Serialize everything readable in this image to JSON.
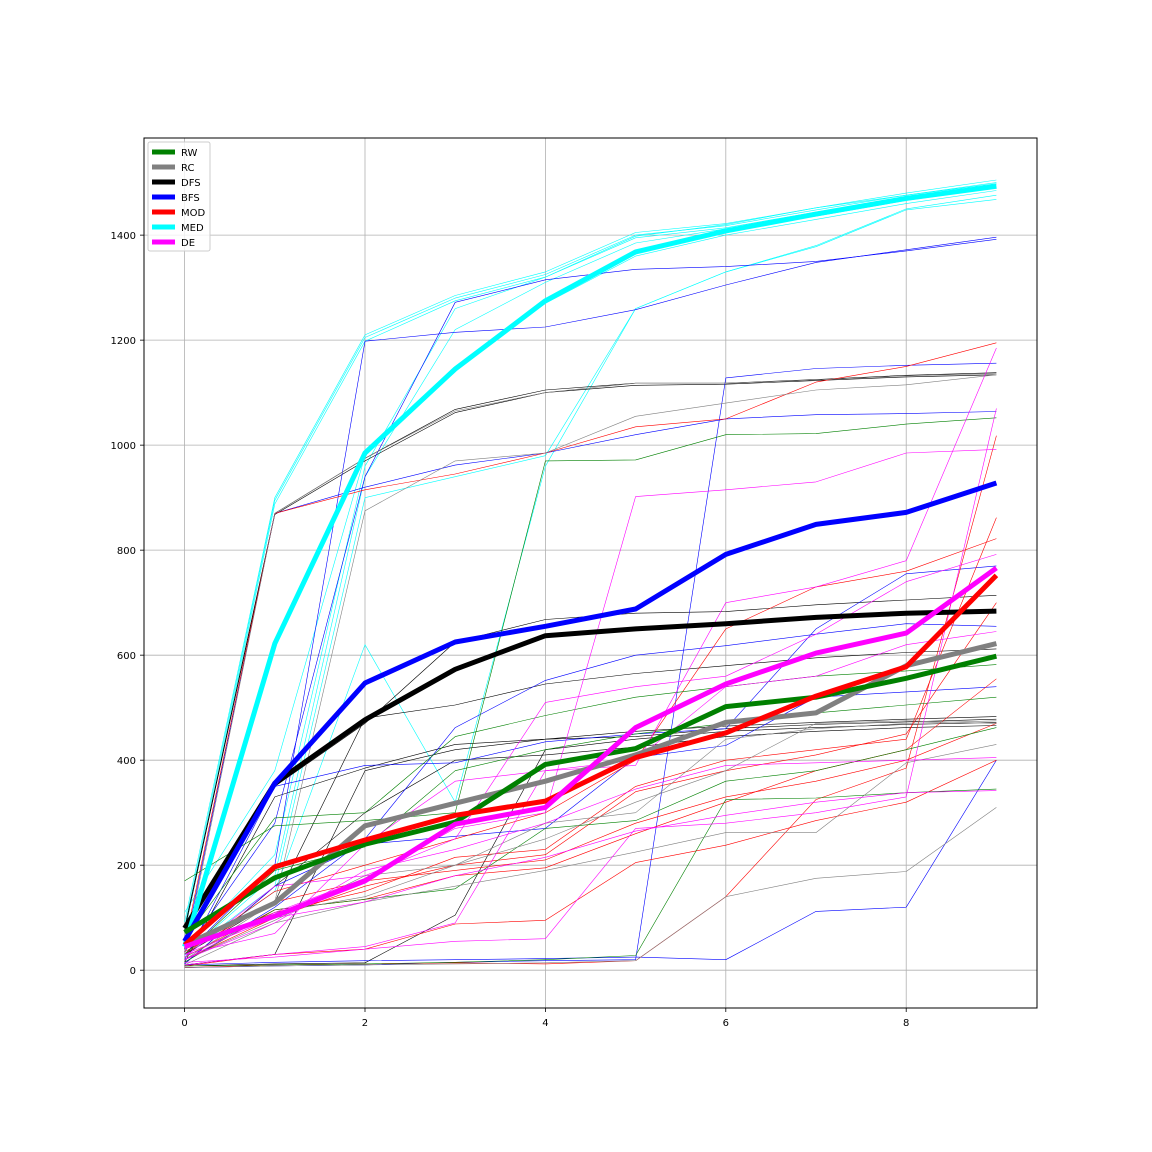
{
  "chart_data": {
    "type": "line",
    "title": "",
    "xlabel": "",
    "ylabel": "",
    "xlim": [
      -0.45,
      9.45
    ],
    "ylim": [
      -72,
      1585
    ],
    "grid": true,
    "legend_position": "top-left",
    "x": [
      0,
      1,
      2,
      3,
      4,
      5,
      6,
      7,
      8,
      9
    ],
    "xticks": [
      0,
      2,
      4,
      6,
      8
    ],
    "yticks": [
      0,
      200,
      400,
      600,
      800,
      1000,
      1200,
      1400
    ],
    "series": [
      {
        "name": "RW",
        "color": "#008000",
        "values": [
          72,
          176,
          240,
          282,
          392,
          422,
          502,
          520,
          556,
          598
        ]
      },
      {
        "name": "RC",
        "color": "#808080",
        "values": [
          48,
          128,
          275,
          318,
          360,
          410,
          472,
          490,
          580,
          622
        ]
      },
      {
        "name": "DFS",
        "color": "#000000",
        "values": [
          80,
          356,
          477,
          573,
          637,
          650,
          660,
          672,
          680,
          684
        ]
      },
      {
        "name": "BFS",
        "color": "#0000ff",
        "values": [
          55,
          356,
          547,
          625,
          655,
          688,
          792,
          849,
          872,
          928
        ]
      },
      {
        "name": "MOD",
        "color": "#ff0000",
        "values": [
          48,
          197,
          248,
          295,
          322,
          405,
          452,
          522,
          578,
          752
        ]
      },
      {
        "name": "MED",
        "color": "#00ffff",
        "values": [
          45,
          622,
          985,
          1145,
          1275,
          1368,
          1408,
          1440,
          1470,
          1493
        ]
      },
      {
        "name": "DE",
        "color": "#ff00ff",
        "values": [
          45,
          103,
          170,
          278,
          310,
          462,
          545,
          604,
          642,
          766
        ]
      }
    ],
    "background_runs": [
      {
        "color": "#00ffff",
        "values": [
          92,
          900,
          1210,
          1285,
          1330,
          1405,
          1422,
          1452,
          1480,
          1505
        ]
      },
      {
        "color": "#00ffff",
        "values": [
          82,
          895,
          1205,
          1280,
          1325,
          1400,
          1418,
          1448,
          1476,
          1500
        ]
      },
      {
        "color": "#00ffff",
        "values": [
          72,
          888,
          1198,
          1275,
          1320,
          1395,
          1414,
          1444,
          1472,
          1496
        ]
      },
      {
        "color": "#00ffff",
        "values": [
          40,
          220,
          960,
          1260,
          1320,
          1398,
          1420,
          1452,
          1476,
          1498
        ]
      },
      {
        "color": "#00ffff",
        "values": [
          30,
          180,
          940,
          1220,
          1310,
          1385,
          1412,
          1436,
          1466,
          1490
        ]
      },
      {
        "color": "#00ffff",
        "values": [
          110,
          380,
          980,
          1150,
          1270,
          1360,
          1400,
          1430,
          1460,
          1485
        ]
      },
      {
        "color": "#00ffff",
        "values": [
          30,
          160,
          900,
          940,
          980,
          1260,
          1330,
          1380,
          1450,
          1476
        ]
      },
      {
        "color": "#00ffff",
        "values": [
          28,
          150,
          620,
          320,
          960,
          1260,
          1330,
          1378,
          1448,
          1468
        ]
      },
      {
        "color": "#000000",
        "values": [
          80,
          870,
          975,
          1068,
          1105,
          1118,
          1118,
          1125,
          1133,
          1138
        ]
      },
      {
        "color": "#000000",
        "values": [
          75,
          868,
          970,
          1062,
          1100,
          1114,
          1116,
          1123,
          1130,
          1134
        ]
      },
      {
        "color": "#000000",
        "values": [
          30,
          130,
          480,
          505,
          545,
          565,
          580,
          595,
          605,
          612
        ]
      },
      {
        "color": "#000000",
        "values": [
          10,
          30,
          380,
          420,
          440,
          445,
          460,
          468,
          473,
          478
        ]
      },
      {
        "color": "#000000",
        "values": [
          15,
          330,
          385,
          430,
          440,
          455,
          465,
          472,
          478,
          483
        ]
      },
      {
        "color": "#000000",
        "values": [
          8,
          12,
          14,
          105,
          420,
          440,
          455,
          462,
          468,
          472
        ]
      },
      {
        "color": "#000000",
        "values": [
          60,
          350,
          470,
          625,
          668,
          680,
          683,
          696,
          705,
          714
        ]
      },
      {
        "color": "#000000",
        "values": [
          12,
          160,
          300,
          400,
          410,
          425,
          445,
          455,
          462,
          466
        ]
      },
      {
        "color": "#0000ff",
        "values": [
          40,
          870,
          920,
          962,
          985,
          1020,
          1050,
          1058,
          1060,
          1064
        ]
      },
      {
        "color": "#0000ff",
        "values": [
          30,
          200,
          1198,
          1215,
          1225,
          1258,
          1305,
          1348,
          1372,
          1396
        ]
      },
      {
        "color": "#0000ff",
        "values": [
          35,
          280,
          940,
          1272,
          1315,
          1335,
          1340,
          1350,
          1370,
          1392
        ]
      },
      {
        "color": "#0000ff",
        "values": [
          10,
          15,
          18,
          20,
          22,
          25,
          20,
          112,
          120,
          400
        ]
      },
      {
        "color": "#0000ff",
        "values": [
          5,
          8,
          10,
          15,
          18,
          20,
          1128,
          1146,
          1152,
          1156
        ]
      },
      {
        "color": "#0000ff",
        "values": [
          15,
          120,
          250,
          462,
          552,
          600,
          618,
          640,
          660,
          655
        ]
      },
      {
        "color": "#0000ff",
        "values": [
          12,
          160,
          240,
          255,
          270,
          405,
          428,
          520,
          530,
          540
        ]
      },
      {
        "color": "#0000ff",
        "values": [
          20,
          350,
          390,
          395,
          435,
          450,
          460,
          650,
          755,
          770
        ]
      },
      {
        "color": "#ff0000",
        "values": [
          50,
          870,
          915,
          945,
          985,
          1035,
          1050,
          1120,
          1150,
          1195
        ]
      },
      {
        "color": "#ff0000",
        "values": [
          8,
          30,
          40,
          88,
          95,
          205,
          238,
          285,
          320,
          400
        ]
      },
      {
        "color": "#ff0000",
        "values": [
          5,
          10,
          12,
          14,
          12,
          18,
          140,
          325,
          385,
          1018
        ]
      },
      {
        "color": "#ff0000",
        "values": [
          40,
          110,
          150,
          215,
          230,
          350,
          400,
          420,
          440,
          862
        ]
      },
      {
        "color": "#ff0000",
        "values": [
          30,
          150,
          200,
          250,
          300,
          400,
          650,
          730,
          760,
          822
        ]
      },
      {
        "color": "#ff0000",
        "values": [
          25,
          115,
          135,
          180,
          195,
          260,
          320,
          380,
          420,
          555
        ]
      },
      {
        "color": "#ff0000",
        "values": [
          35,
          130,
          170,
          190,
          210,
          280,
          330,
          360,
          400,
          470
        ]
      },
      {
        "color": "#ff0000",
        "values": [
          20,
          100,
          160,
          200,
          220,
          340,
          380,
          410,
          450,
          700
        ]
      },
      {
        "color": "#008000",
        "values": [
          170,
          275,
          285,
          300,
          970,
          972,
          1020,
          1022,
          1040,
          1052
        ]
      },
      {
        "color": "#008000",
        "values": [
          8,
          10,
          12,
          15,
          20,
          28,
          325,
          328,
          338,
          345
        ]
      },
      {
        "color": "#008000",
        "values": [
          60,
          290,
          300,
          445,
          485,
          520,
          540,
          560,
          570,
          582
        ]
      },
      {
        "color": "#008000",
        "values": [
          30,
          190,
          235,
          380,
          420,
          450,
          470,
          490,
          505,
          520
        ]
      },
      {
        "color": "#008000",
        "values": [
          15,
          115,
          135,
          155,
          270,
          285,
          360,
          380,
          420,
          462
        ]
      },
      {
        "color": "#808080",
        "values": [
          30,
          870,
          975,
          1065,
          1100,
          1118,
          1118,
          1124,
          1132,
          1136
        ]
      },
      {
        "color": "#808080",
        "values": [
          20,
          130,
          875,
          970,
          985,
          1055,
          1080,
          1105,
          1115,
          1134
        ]
      },
      {
        "color": "#808080",
        "values": [
          10,
          90,
          130,
          160,
          190,
          225,
          262,
          262,
          395,
          430
        ]
      },
      {
        "color": "#808080",
        "values": [
          5,
          8,
          10,
          12,
          14,
          18,
          140,
          175,
          188,
          310
        ]
      },
      {
        "color": "#808080",
        "values": [
          20,
          95,
          180,
          200,
          250,
          320,
          380,
          470,
          475,
          470
        ]
      },
      {
        "color": "#808080",
        "values": [
          25,
          110,
          140,
          200,
          280,
          300,
          440,
          460,
          470,
          475
        ]
      },
      {
        "color": "#ff00ff",
        "values": [
          20,
          110,
          175,
          270,
          300,
          902,
          915,
          930,
          985,
          992
        ]
      },
      {
        "color": "#ff00ff",
        "values": [
          15,
          25,
          40,
          55,
          60,
          270,
          280,
          300,
          330,
          1070
        ]
      },
      {
        "color": "#ff00ff",
        "values": [
          10,
          30,
          45,
          90,
          380,
          390,
          700,
          730,
          780,
          1185
        ]
      },
      {
        "color": "#ff00ff",
        "values": [
          30,
          70,
          240,
          360,
          380,
          400,
          540,
          560,
          620,
          645
        ]
      },
      {
        "color": "#ff00ff",
        "values": [
          20,
          90,
          190,
          230,
          280,
          345,
          390,
          395,
          400,
          405
        ]
      },
      {
        "color": "#ff00ff",
        "values": [
          25,
          160,
          180,
          250,
          510,
          540,
          560,
          640,
          740,
          792
        ]
      },
      {
        "color": "#ff00ff",
        "values": [
          30,
          100,
          130,
          180,
          215,
          265,
          295,
          320,
          338,
          342
        ]
      }
    ]
  }
}
